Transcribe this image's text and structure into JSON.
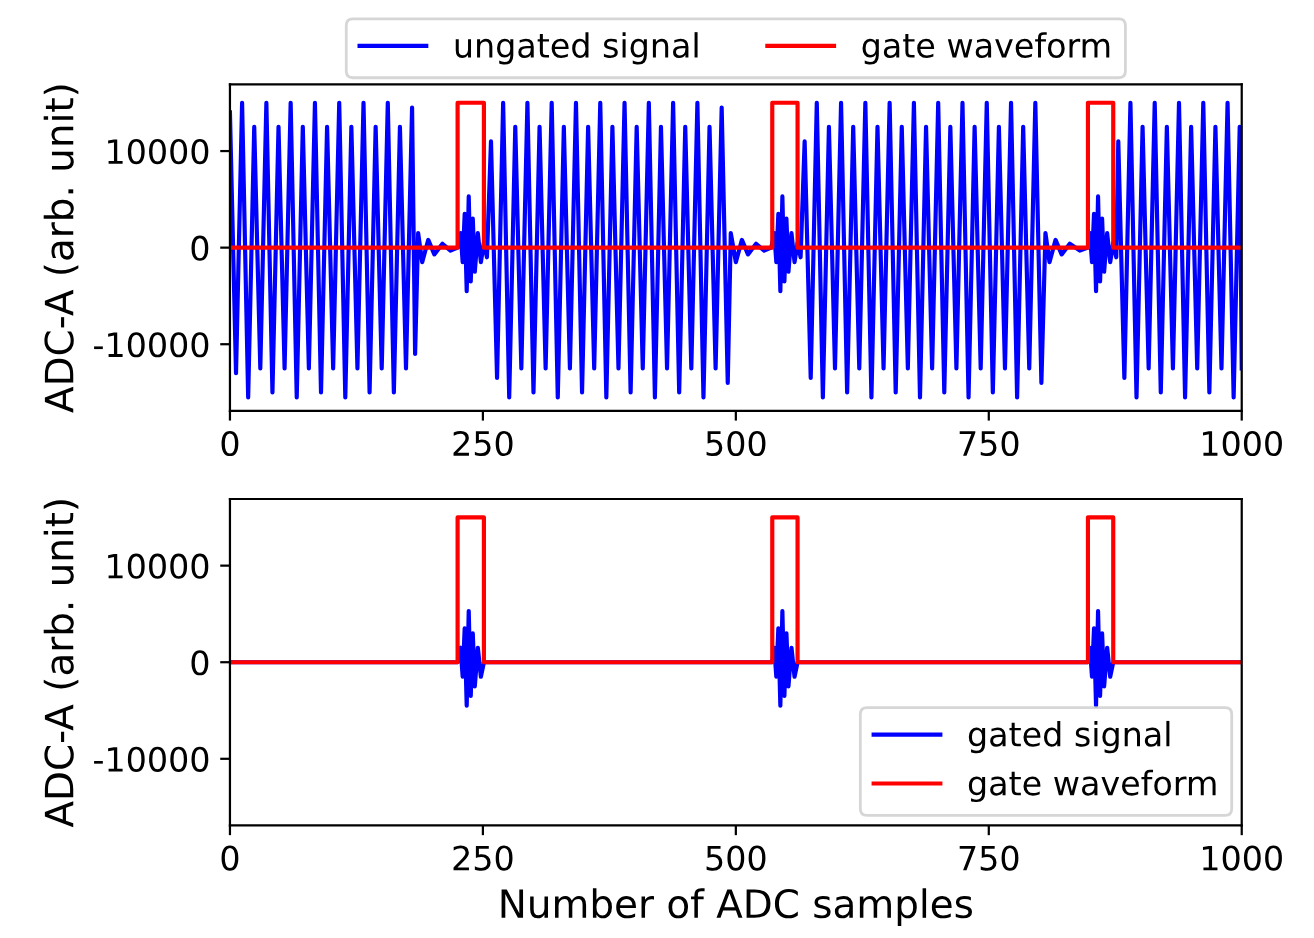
{
  "chart_data": [
    {
      "type": "line",
      "ylabel": "ADC-A (arb. unit)",
      "xlim": [
        0,
        1000
      ],
      "xticks": [
        0,
        250,
        500,
        750,
        1000
      ],
      "ylim": [
        -16900,
        16900
      ],
      "yticks": [
        -10000,
        0,
        10000
      ],
      "grid": false,
      "legend": "top",
      "marker": "none",
      "line_style": "solid",
      "series": [
        {
          "name": "ungated signal",
          "color": "#0000ff",
          "x": [
            0,
            6,
            12,
            18,
            24,
            30,
            36,
            42,
            48,
            54,
            60,
            66,
            72,
            78,
            84,
            90,
            96,
            102,
            108,
            114,
            120,
            126,
            132,
            138,
            144,
            150,
            156,
            162,
            168,
            174,
            180,
            183,
            186,
            190,
            196,
            202,
            210,
            218,
            225,
            228,
            230,
            232,
            234,
            236,
            238,
            240,
            242,
            245,
            248,
            251,
            254,
            258,
            264,
            270,
            276,
            282,
            288,
            294,
            300,
            306,
            312,
            318,
            324,
            330,
            336,
            342,
            348,
            354,
            360,
            366,
            372,
            378,
            384,
            390,
            396,
            402,
            408,
            414,
            420,
            426,
            432,
            438,
            444,
            450,
            456,
            462,
            468,
            474,
            480,
            486,
            492,
            495,
            500,
            506,
            512,
            520,
            528,
            535,
            538,
            540,
            542,
            544,
            546,
            548,
            550,
            552,
            555,
            558,
            561,
            564,
            568,
            574,
            580,
            586,
            592,
            598,
            604,
            610,
            616,
            622,
            628,
            634,
            640,
            646,
            652,
            658,
            664,
            670,
            676,
            682,
            688,
            694,
            700,
            706,
            712,
            718,
            724,
            730,
            736,
            742,
            748,
            754,
            760,
            766,
            772,
            778,
            784,
            790,
            796,
            802,
            806,
            810,
            816,
            822,
            830,
            840,
            848,
            850,
            852,
            854,
            856,
            858,
            860,
            862,
            864,
            867,
            870,
            873,
            876,
            878,
            884,
            890,
            896,
            902,
            908,
            914,
            920,
            926,
            932,
            938,
            944,
            950,
            956,
            962,
            968,
            974,
            980,
            986,
            992,
            998,
            1000
          ],
          "values": [
            14000,
            -13000,
            15000,
            -15500,
            12500,
            -12500,
            15000,
            -15000,
            12500,
            -12500,
            15000,
            -15500,
            12500,
            -12500,
            15000,
            -15000,
            12500,
            -12500,
            15000,
            -15500,
            12500,
            -12500,
            15000,
            -15000,
            12500,
            -12500,
            15000,
            -15000,
            12500,
            -12500,
            14500,
            -11000,
            1500,
            -1500,
            800,
            -700,
            400,
            -300,
            0,
            1500,
            -1500,
            3500,
            -4500,
            5300,
            -3500,
            3000,
            -2500,
            1500,
            -1500,
            500,
            -1000,
            11000,
            -13500,
            15000,
            -15500,
            12500,
            -12500,
            15000,
            -15000,
            12500,
            -12500,
            15000,
            -15500,
            12500,
            -12500,
            15000,
            -15000,
            12500,
            -12500,
            15000,
            -15500,
            12500,
            -12500,
            15000,
            -15000,
            12500,
            -12500,
            15000,
            -15500,
            12500,
            -12500,
            15000,
            -15000,
            12500,
            -12500,
            15000,
            -15500,
            12500,
            -12500,
            14500,
            -14000,
            1500,
            -1500,
            800,
            -700,
            400,
            -300,
            0,
            1500,
            -1500,
            3500,
            -4500,
            5300,
            -3500,
            3000,
            -2500,
            1500,
            -1500,
            500,
            -1000,
            11000,
            -13500,
            15000,
            -15500,
            12500,
            -12500,
            15000,
            -15000,
            12500,
            -12500,
            15000,
            -15500,
            12500,
            -12500,
            15000,
            -15000,
            12500,
            -12500,
            15000,
            -15500,
            12500,
            -12500,
            15000,
            -15000,
            12500,
            -12500,
            15000,
            -15500,
            12500,
            -12500,
            15000,
            -15000,
            12500,
            -12500,
            15000,
            -15500,
            12500,
            -12500,
            15000,
            -14000,
            1500,
            -1500,
            800,
            -700,
            400,
            -300,
            0,
            1500,
            -1500,
            3500,
            -4500,
            5300,
            -3500,
            3000,
            -2500,
            1500,
            -1500,
            500,
            -1000,
            11000,
            -13500,
            15000,
            -15500,
            12500,
            -12500,
            15000,
            -15000,
            12500,
            -12500,
            15000,
            -15500,
            12500,
            -12500,
            15000,
            -15000,
            12500,
            -12500,
            15000,
            -15500,
            12500,
            -12500
          ]
        },
        {
          "name": "gate waveform",
          "color": "#ff0000",
          "x": [
            0,
            225,
            225,
            251,
            251,
            536,
            536,
            561,
            561,
            848,
            848,
            873,
            873,
            1000
          ],
          "values": [
            0,
            0,
            15000,
            15000,
            0,
            0,
            15000,
            15000,
            0,
            0,
            15000,
            15000,
            0,
            0
          ]
        }
      ]
    },
    {
      "type": "line",
      "xlabel": "Number of ADC samples",
      "ylabel": "ADC-A (arb. unit)",
      "xlim": [
        0,
        1000
      ],
      "xticks": [
        0,
        250,
        500,
        750,
        1000
      ],
      "ylim": [
        -16900,
        16900
      ],
      "yticks": [
        -10000,
        0,
        10000
      ],
      "grid": false,
      "legend": "bottom right",
      "marker": "none",
      "line_style": "solid",
      "series": [
        {
          "name": "gated signal",
          "color": "#0000ff",
          "x": [
            0,
            225,
            228,
            230,
            232,
            234,
            236,
            238,
            240,
            242,
            245,
            248,
            251,
            536,
            538,
            540,
            542,
            544,
            546,
            548,
            550,
            552,
            555,
            558,
            561,
            848,
            850,
            852,
            854,
            856,
            858,
            860,
            862,
            864,
            867,
            870,
            873,
            1000
          ],
          "values": [
            0,
            0,
            1500,
            -1500,
            3500,
            -4500,
            5300,
            -3500,
            3000,
            -2500,
            1500,
            -1500,
            0,
            0,
            1500,
            -1500,
            3500,
            -4500,
            5300,
            -3500,
            3000,
            -2500,
            1500,
            -1500,
            0,
            0,
            1500,
            -1500,
            3500,
            -4500,
            5300,
            -3500,
            3000,
            -2500,
            1500,
            -1500,
            0,
            0
          ]
        },
        {
          "name": "gate waveform",
          "color": "#ff0000",
          "x": [
            0,
            225,
            225,
            251,
            251,
            536,
            536,
            561,
            561,
            848,
            848,
            873,
            873,
            1000
          ],
          "values": [
            0,
            0,
            15000,
            15000,
            0,
            0,
            15000,
            15000,
            0,
            0,
            15000,
            15000,
            0,
            0
          ]
        }
      ]
    }
  ]
}
